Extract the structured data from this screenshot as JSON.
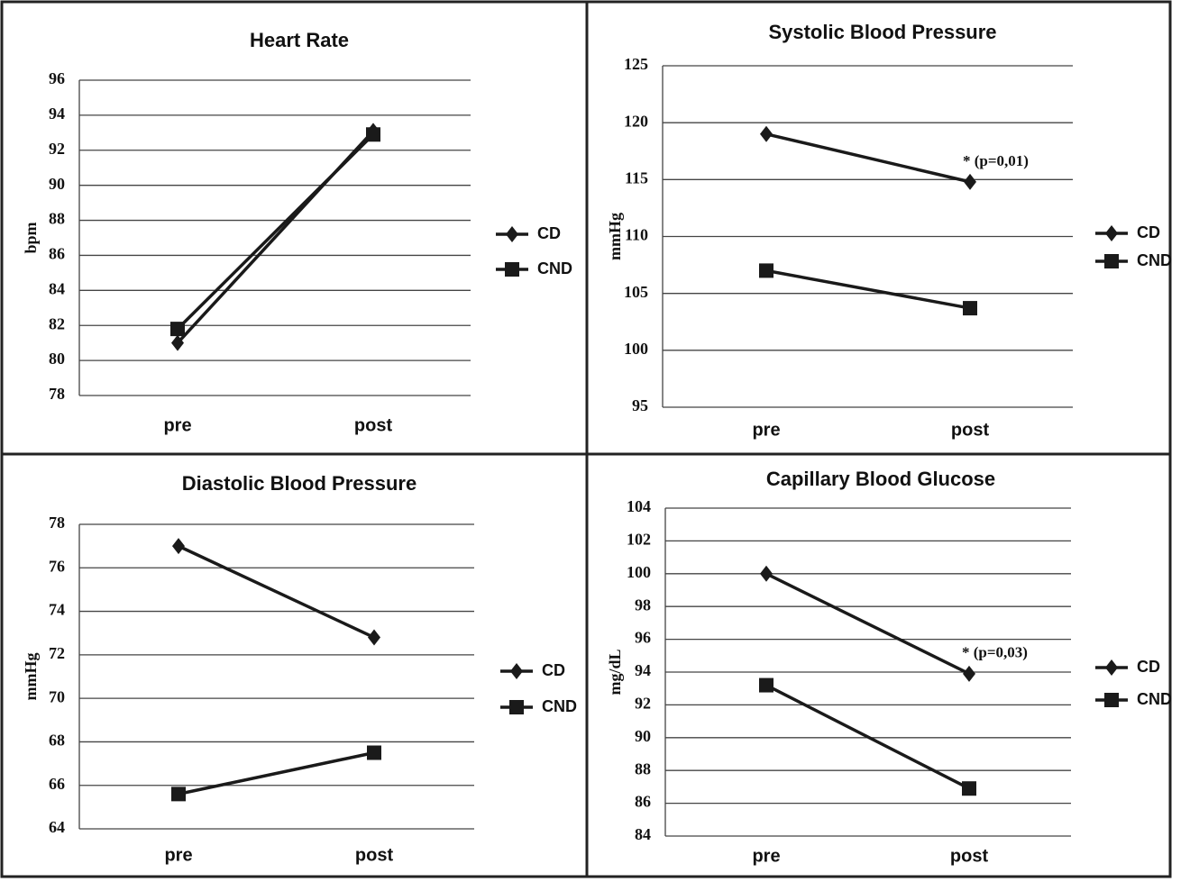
{
  "chart_data": [
    {
      "type": "line",
      "title": "Heart Rate",
      "ylabel": "bpm",
      "categories": [
        "pre",
        "post"
      ],
      "series": [
        {
          "name": "CD",
          "color": "#1a1a1a",
          "marker": "diamond",
          "values": [
            81,
            93.1
          ]
        },
        {
          "name": "CND",
          "color": "#1a1a1a",
          "marker": "square",
          "values": [
            81.8,
            92.9
          ]
        }
      ],
      "ylim": [
        78,
        96
      ],
      "yticks": [
        78,
        80,
        82,
        84,
        86,
        88,
        90,
        92,
        94,
        96
      ],
      "grid": true,
      "legend": "right"
    },
    {
      "type": "line",
      "title": "Systolic Blood Pressure",
      "ylabel": "mmHg",
      "categories": [
        "pre",
        "post"
      ],
      "series": [
        {
          "name": "CD",
          "color": "#1a1a1a",
          "marker": "diamond",
          "values": [
            119,
            114.8
          ]
        },
        {
          "name": "CND",
          "color": "#1a1a1a",
          "marker": "square",
          "values": [
            107,
            103.7
          ]
        }
      ],
      "ylim": [
        95,
        125
      ],
      "yticks": [
        95,
        100,
        105,
        110,
        115,
        120,
        125
      ],
      "grid": true,
      "legend": "right",
      "annotation": "* (p=0,01)"
    },
    {
      "type": "line",
      "title": "Diastolic Blood Pressure",
      "ylabel": "mmHg",
      "categories": [
        "pre",
        "post"
      ],
      "series": [
        {
          "name": "CD",
          "color": "#1a1a1a",
          "marker": "diamond",
          "values": [
            77,
            72.8
          ]
        },
        {
          "name": "CND",
          "color": "#1a1a1a",
          "marker": "square",
          "values": [
            65.6,
            67.5
          ]
        }
      ],
      "ylim": [
        64,
        78
      ],
      "yticks": [
        64,
        66,
        68,
        70,
        72,
        74,
        76,
        78
      ],
      "grid": true,
      "legend": "right"
    },
    {
      "type": "line",
      "title": "Capillary Blood Glucose",
      "ylabel": "mg/dL",
      "categories": [
        "pre",
        "post"
      ],
      "series": [
        {
          "name": "CD",
          "color": "#1a1a1a",
          "marker": "diamond",
          "values": [
            100,
            93.9
          ]
        },
        {
          "name": "CND",
          "color": "#1a1a1a",
          "marker": "square",
          "values": [
            93.2,
            86.9
          ]
        }
      ],
      "ylim": [
        84,
        104
      ],
      "yticks": [
        84,
        86,
        88,
        90,
        92,
        94,
        96,
        98,
        100,
        102,
        104
      ],
      "grid": true,
      "legend": "right",
      "annotation": "* (p=0,03)"
    }
  ]
}
